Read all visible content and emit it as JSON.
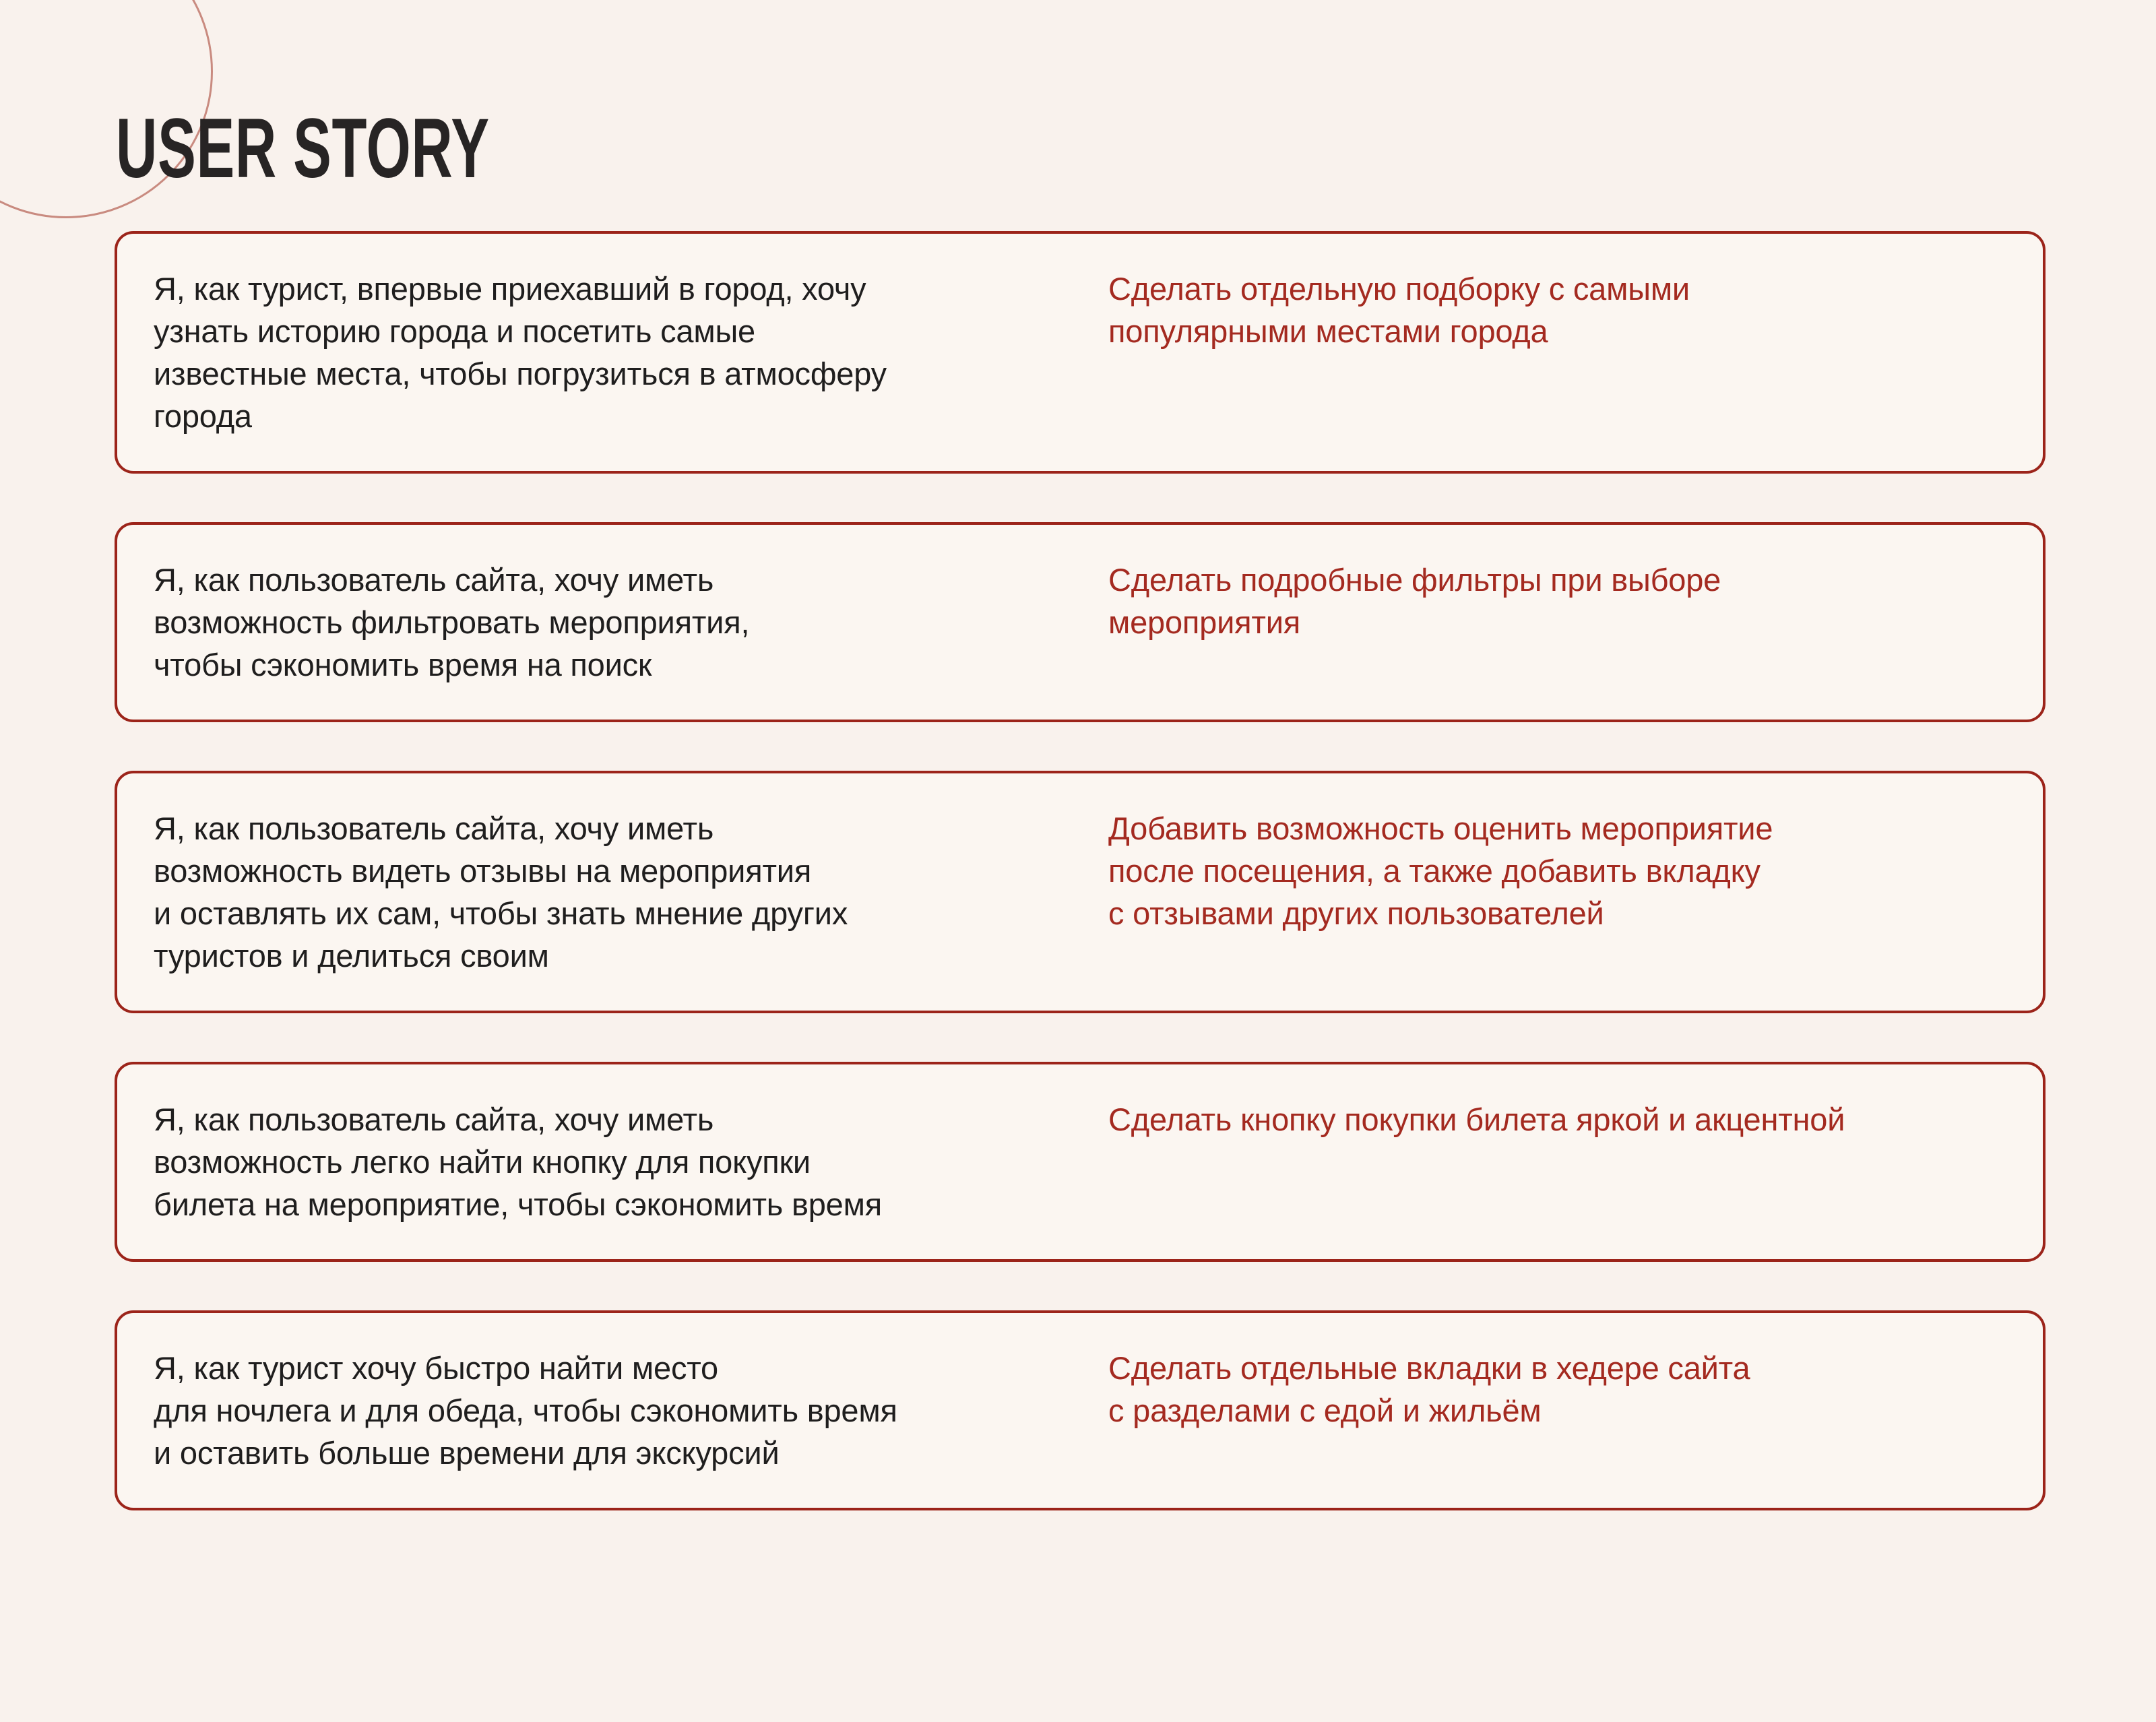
{
  "page": {
    "title": "USER STORY"
  },
  "colors": {
    "background": "#f9f2ed",
    "card_background": "#fbf6f1",
    "card_border": "#9c241a",
    "accent_text": "#a42a20",
    "heading_text": "#272424",
    "body_text": "#1f1e1e",
    "circle_stroke": "#c98b80"
  },
  "cards": [
    {
      "story": "Я, как турист, впервые приехавший в город, хочу\nузнать историю города и посетить самые\nизвестные места, чтобы погрузиться в атмосферу\nгорода",
      "action": "Сделать отдельную подборку с самыми\nпопулярными местами города"
    },
    {
      "story": "Я, как пользователь сайта, хочу иметь\nвозможность фильтровать мероприятия,\nчтобы сэкономить время на поиск",
      "action": "Сделать подробные фильтры при выборе\nмероприятия"
    },
    {
      "story": "Я, как пользователь сайта, хочу иметь\nвозможность видеть отзывы на мероприятия\nи оставлять их сам, чтобы знать мнение других\nтуристов и делиться своим",
      "action": "Добавить возможность оценить мероприятие\nпосле посещения, а также добавить вкладку\nс отзывами других пользователей"
    },
    {
      "story": "Я, как пользователь сайта, хочу иметь\nвозможность легко найти кнопку для покупки\nбилета на мероприятие, чтобы сэкономить время",
      "action": "Сделать кнопку покупки билета яркой и акцентной"
    },
    {
      "story": "Я, как турист хочу быстро найти место\nдля ночлега и для обеда, чтобы сэкономить время\nи оставить больше времени для экскурсий",
      "action": "Сделать отдельные вкладки в хедере сайта\nс разделами с едой и жильём"
    }
  ]
}
